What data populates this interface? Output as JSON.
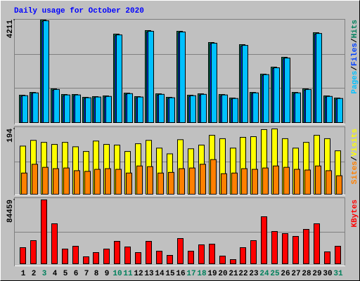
{
  "chart_data": [
    {
      "type": "bar",
      "title": "Daily usage for October 2020",
      "ylim": [
        0,
        4211
      ],
      "yticks": [
        4211
      ],
      "grid_divisions": 3,
      "legend_separator": "/",
      "series": [
        {
          "name": "Hits",
          "color": "#00805c",
          "values": [
            1125,
            1240,
            4211,
            1384,
            1154,
            1154,
            1038,
            1067,
            1096,
            3634,
            1211,
            1067,
            3778,
            1182,
            1038,
            3749,
            1125,
            1182,
            3288,
            1154,
            1009,
            3201,
            1240,
            1990,
            2278,
            2682,
            1240,
            1384,
            3691,
            1096,
            1009
          ]
        },
        {
          "name": "Files",
          "color": "#0040ff",
          "values": [
            1075,
            1190,
            4150,
            1330,
            1100,
            1105,
            990,
            1020,
            1050,
            3570,
            1160,
            1020,
            3720,
            1130,
            990,
            3690,
            1075,
            1130,
            3230,
            1100,
            960,
            3140,
            1190,
            1930,
            2220,
            2620,
            1190,
            1330,
            3630,
            1050,
            960
          ]
        },
        {
          "name": "Pages",
          "color": "#00c0ff",
          "values": [
            1105,
            1220,
            4180,
            1360,
            1135,
            1135,
            1020,
            1050,
            1075,
            3600,
            1190,
            1050,
            3750,
            1160,
            1020,
            3720,
            1105,
            1160,
            3260,
            1135,
            990,
            3170,
            1220,
            1970,
            2250,
            2650,
            1220,
            1360,
            3660,
            1075,
            990
          ]
        }
      ]
    },
    {
      "type": "bar",
      "ylim": [
        0,
        194
      ],
      "yticks": [
        194
      ],
      "grid_divisions": 2,
      "legend_separator": "/",
      "series": [
        {
          "name": "Visits",
          "color": "#ffff00",
          "values": [
            143,
            160,
            154,
            148,
            154,
            141,
            127,
            158,
            148,
            146,
            127,
            150,
            160,
            137,
            120,
            162,
            135,
            146,
            175,
            165,
            137,
            169,
            171,
            192,
            194,
            165,
            137,
            154,
            175,
            165,
            129
          ]
        },
        {
          "name": "Sites",
          "color": "#ff8000",
          "values": [
            63,
            89,
            80,
            76,
            78,
            70,
            68,
            74,
            76,
            74,
            63,
            84,
            82,
            63,
            65,
            76,
            78,
            89,
            103,
            61,
            63,
            76,
            74,
            78,
            84,
            80,
            74,
            72,
            84,
            70,
            55
          ]
        }
      ]
    },
    {
      "type": "bar",
      "ylim": [
        0,
        84459
      ],
      "yticks": [
        84459
      ],
      "grid_divisions": 2,
      "categories": [
        "1",
        "2",
        "3",
        "4",
        "5",
        "6",
        "7",
        "8",
        "9",
        "10",
        "11",
        "12",
        "13",
        "14",
        "15",
        "16",
        "17",
        "18",
        "19",
        "20",
        "21",
        "22",
        "23",
        "24",
        "25",
        "26",
        "27",
        "28",
        "29",
        "30",
        "31"
      ],
      "category_colors": [
        "#000000",
        "#000000",
        "#00805c",
        "#000000",
        "#000000",
        "#000000",
        "#000000",
        "#000000",
        "#000000",
        "#00805c",
        "#00805c",
        "#000000",
        "#000000",
        "#000000",
        "#000000",
        "#000000",
        "#00805c",
        "#00805c",
        "#000000",
        "#000000",
        "#000000",
        "#000000",
        "#000000",
        "#00805c",
        "#00805c",
        "#000000",
        "#000000",
        "#000000",
        "#000000",
        "#000000",
        "#00805c"
      ],
      "series": [
        {
          "name": "KBytes",
          "color": "#ff0000",
          "values": [
            21344,
            30624,
            84459,
            52896,
            19488,
            23200,
            9280,
            14848,
            19488,
            29696,
            22272,
            14848,
            29696,
            16704,
            11136,
            33408,
            16704,
            25056,
            25984,
            10208,
            5568,
            21344,
            30624,
            62176,
            42688,
            39904,
            36192,
            45472,
            52896,
            15776,
            23200
          ]
        }
      ]
    }
  ]
}
